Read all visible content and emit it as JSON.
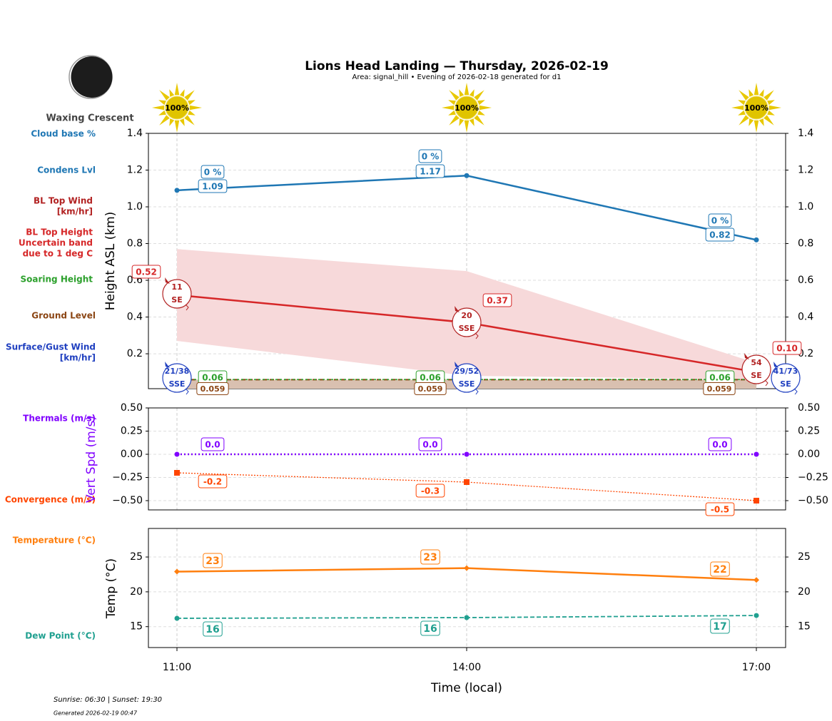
{
  "title": "Lions Head Landing — Thursday, 2026-02-19",
  "subtitle": "Area: signal_hill • Evening of 2026-02-18 generated for d1",
  "moon_phase": "Waxing Crescent",
  "footer": {
    "sun": "Sunrise: 06:30 | Sunset: 19:30",
    "generated": "Generated 2026-02-19 00:47"
  },
  "side_labels": {
    "cloud_base": "Cloud base %",
    "condens": "Condens Lvl",
    "bl_wind_1": "BL Top Wind",
    "bl_wind_2": "[km/hr]",
    "bl_top_1": "BL Top Height",
    "bl_top_2": "Uncertain band",
    "bl_top_3": "due to 1 deg C",
    "soaring": "Soaring Height",
    "ground": "Ground Level",
    "surface_1": "Surface/Gust Wind",
    "surface_2": "[km/hr]",
    "thermals": "Thermals (m/s)",
    "convergence": "Convergence (m/s)",
    "temperature": "Temperature (°C)",
    "dewpoint": "Dew Point (°C)"
  },
  "colors": {
    "condens": "#1f77b4",
    "bl": "#d62728",
    "band": "#f7d9da",
    "soaring": "#2ca02c",
    "ground": "#8b4513",
    "ground_fill": "#d9c0b0",
    "surface": "#2040c0",
    "thermal": "#8000ff",
    "convergence": "#ff4500",
    "temp": "#ff7f0e",
    "dew": "#20a090",
    "sun": "#e8c800"
  },
  "chart_data": [
    {
      "type": "line",
      "ylabel": "Height ASL (km)",
      "x": [
        "11:00",
        "14:00",
        "17:00"
      ],
      "ylim": [
        0.01,
        1.4
      ],
      "yticks": [
        "0.2",
        "0.4",
        "0.6",
        "0.8",
        "1.0",
        "1.2",
        "1.4"
      ],
      "sun_percent": [
        "100%",
        "100%",
        "100%"
      ],
      "cloud_base_pct": [
        "0 %",
        "0 %",
        "0 %"
      ],
      "condens_lvl": [
        1.09,
        1.17,
        0.82
      ],
      "condens_labels": [
        "1.09",
        "1.17",
        "0.82"
      ],
      "bl_top": [
        0.52,
        0.37,
        0.1
      ],
      "bl_top_labels": [
        "0.52",
        "0.37",
        "0.10"
      ],
      "bl_band_upper": [
        0.77,
        0.65,
        0.15
      ],
      "bl_band_lower": [
        0.27,
        0.08,
        0.06
      ],
      "bl_wind": [
        {
          "speed": "11",
          "dir": "SE"
        },
        {
          "speed": "20",
          "dir": "SSE"
        },
        {
          "speed": "54",
          "dir": "SE"
        }
      ],
      "soaring": [
        0.06,
        0.06,
        0.06
      ],
      "soaring_labels": [
        "0.06",
        "0.06",
        "0.06"
      ],
      "ground": [
        0.059,
        0.059,
        0.059
      ],
      "ground_labels": [
        "0.059",
        "0.059",
        "0.059"
      ],
      "surface_wind": [
        {
          "speed": "21/38",
          "dir": "SSE"
        },
        {
          "speed": "29/52",
          "dir": "SSE"
        },
        {
          "speed": "41/73",
          "dir": "SE"
        }
      ],
      "grid": true
    },
    {
      "type": "line",
      "ylabel": "Vert Spd (m/s)",
      "ylim": [
        -0.6,
        0.5
      ],
      "yticks": [
        "−0.50",
        "−0.25",
        "0.00",
        "0.25",
        "0.50"
      ],
      "series": [
        {
          "name": "Thermals (m/s)",
          "values": [
            0.0,
            0.0,
            0.0
          ],
          "labels": [
            "0.0",
            "0.0",
            "0.0"
          ]
        },
        {
          "name": "Convergence (m/s)",
          "values": [
            -0.2,
            -0.3,
            -0.5
          ],
          "labels": [
            "-0.2",
            "-0.3",
            "-0.5"
          ]
        }
      ],
      "grid": true
    },
    {
      "type": "line",
      "ylabel": "Temp (°C)",
      "xlabel": "Time (local)",
      "xticks": [
        "11:00",
        "14:00",
        "17:00"
      ],
      "ylim": [
        12.0,
        29.1
      ],
      "yticks": [
        "15",
        "20",
        "25"
      ],
      "series": [
        {
          "name": "Temperature (°C)",
          "values": [
            22.9,
            23.4,
            21.7
          ],
          "labels": [
            "23",
            "23",
            "22"
          ]
        },
        {
          "name": "Dew Point (°C)",
          "values": [
            16.2,
            16.3,
            16.6
          ],
          "labels": [
            "16",
            "16",
            "17"
          ]
        }
      ],
      "grid": true
    }
  ]
}
